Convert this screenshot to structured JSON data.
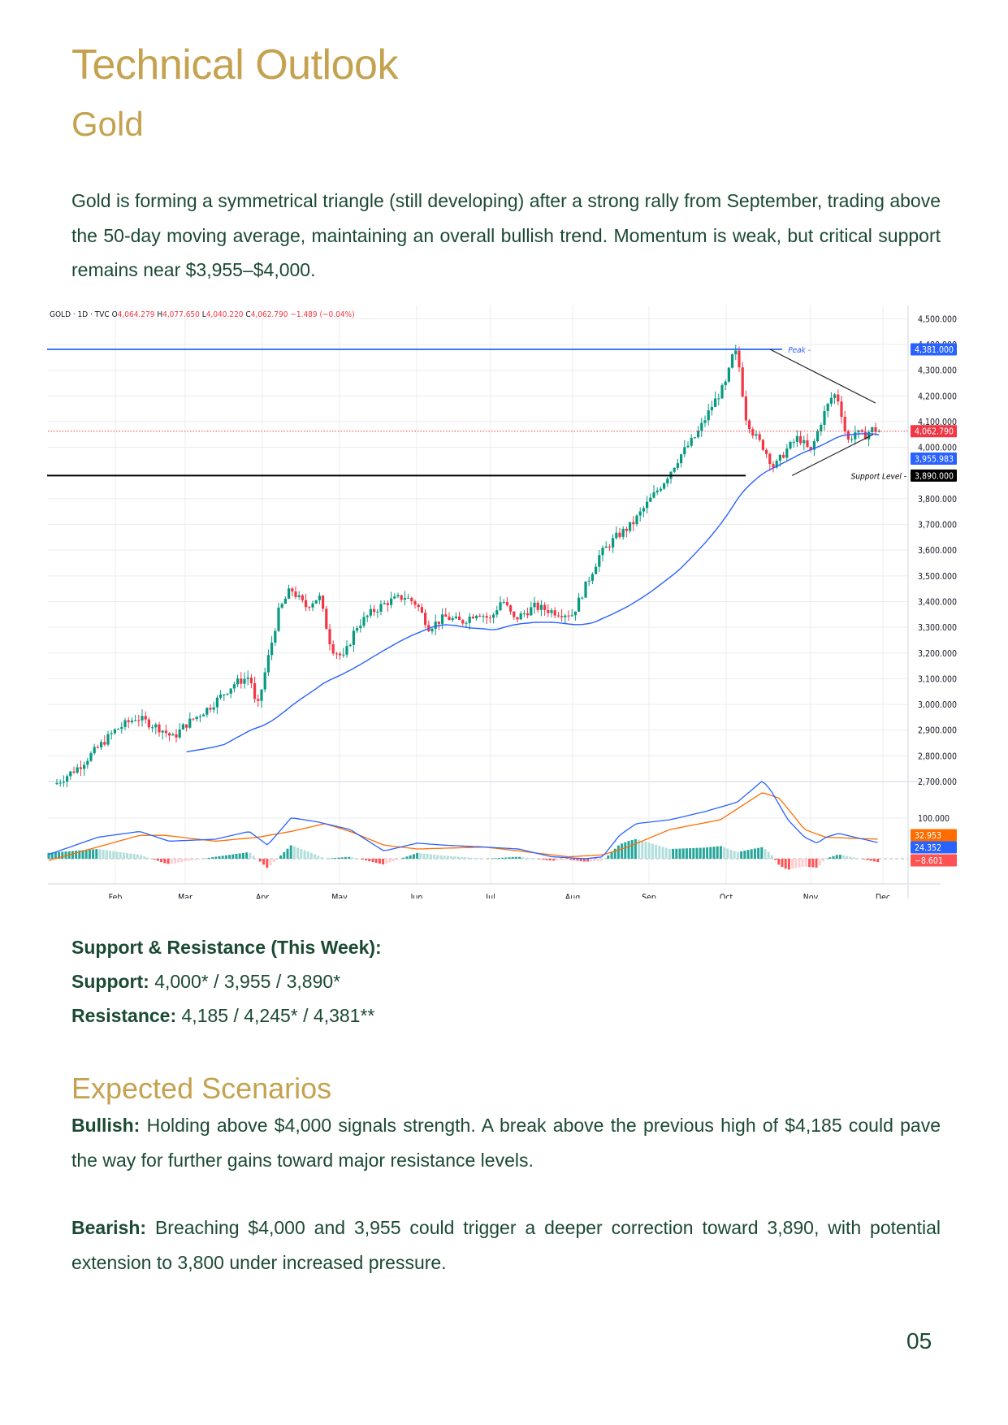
{
  "page": {
    "title": "Technical Outlook",
    "subtitle": "Gold",
    "intro": "Gold is forming a symmetrical triangle (still developing) after a strong rally from September, trading above the 50-day moving average, maintaining an overall bullish trend. Momentum is weak, but critical support remains near $3,955–$4,000.",
    "page_number": "05",
    "colors": {
      "heading_gold": "#c4a24f",
      "body_green": "#1b4a33"
    }
  },
  "support_resistance": {
    "heading": "Support & Resistance (This Week):",
    "support_label": "Support:",
    "support_values": "4,000* / 3,955 / 3,890*",
    "resistance_label": "Resistance:",
    "resistance_values": "4,185 / 4,245* / 4,381**"
  },
  "scenarios": {
    "heading": "Expected Scenarios",
    "bullish_label": "Bullish:",
    "bullish_text": "Holding above $4,000 signals strength. A break above the previous high of $4,185 could pave the way for further gains toward major resistance levels.",
    "bearish_label": "Bearish:",
    "bearish_text": "Breaching $4,000 and 3,955 could trigger a deeper correction toward 3,890, with potential extension to 3,800 under increased pressure."
  },
  "chart_header": {
    "symbol": "GOLD · 1D · TVC",
    "o_label": "O",
    "o_value": "4,064.279",
    "h_label": "H",
    "h_value": "4,077.650",
    "l_label": "L",
    "l_value": "4,040.220",
    "c_label": "C",
    "c_value": "4,062.790",
    "change": "−1.489 (−0.04%)"
  },
  "chart_data": {
    "type": "candlestick",
    "title": "GOLD · 1D · TVC",
    "x_ticks": [
      "Feb",
      "Mar",
      "Apr",
      "May",
      "Jun",
      "Jul",
      "Aug",
      "Sep",
      "Oct",
      "Nov",
      "Dec"
    ],
    "y_ticks": [
      4500,
      4400,
      4300,
      4200,
      4100,
      4000,
      3800,
      3700,
      3600,
      3500,
      3400,
      3300,
      3200,
      3100,
      3000,
      2900,
      2800,
      2700
    ],
    "y_tick_labels": [
      "4,500.000",
      "4,400.000",
      "4,300.000",
      "4,200.000",
      "4,100.000",
      "4,000.000",
      "3,800.000",
      "3,700.000",
      "3,600.000",
      "3,500.000",
      "3,400.000",
      "3,300.000",
      "3,200.000",
      "3,100.000",
      "3,000.000",
      "2,900.000",
      "2,800.000",
      "2,700.000"
    ],
    "ylim": [
      2680,
      4530
    ],
    "grid": true,
    "price_path_monthly_close": {
      "Jan": 2760,
      "Feb": 2940,
      "Mar": 3000,
      "Apr": 3300,
      "May": 3380,
      "Jun": 3320,
      "Jul": 3350,
      "Aug": 3340,
      "Sep": 3820,
      "Oct": 4000,
      "Nov": 4062.79
    },
    "key_points": [
      {
        "label": "Jan start",
        "value": 2700
      },
      {
        "label": "Late Feb high",
        "value": 2950
      },
      {
        "label": "Apr low",
        "value": 2960
      },
      {
        "label": "Apr high",
        "value": 3500
      },
      {
        "label": "Mid-Jun high",
        "value": 3450
      },
      {
        "label": "Late Aug",
        "value": 3410
      },
      {
        "label": "Oct peak",
        "value": 4381
      },
      {
        "label": "Late Oct low",
        "value": 3890
      },
      {
        "label": "Mid-Nov high",
        "value": 4245
      },
      {
        "label": "Current close",
        "value": 4062.79
      }
    ],
    "series": [
      {
        "name": "50-day MA",
        "color": "#2962ff",
        "last_value": 3955.983
      },
      {
        "name": "Price (close)",
        "last_value": 4062.79
      }
    ],
    "annotations": [
      {
        "type": "hline",
        "label": "Peak",
        "value": 4381.0,
        "value_label": "4,381.000",
        "color": "#2962ff"
      },
      {
        "type": "hline",
        "label": "Support Level",
        "value": 3890.0,
        "value_label": "3,890.000",
        "color": "#000000"
      },
      {
        "type": "price_tag",
        "value_label": "4,062.790",
        "color": "#f23645"
      },
      {
        "type": "price_tag",
        "value_label": "3,955.983",
        "color": "#2962ff"
      },
      {
        "type": "trendline",
        "label": "triangle upper",
        "from": 4381,
        "to": 4170
      },
      {
        "type": "trendline",
        "label": "triangle lower",
        "from": 3890,
        "to": 4050
      }
    ],
    "macd": {
      "tick": "100.000",
      "signal_value": "32.953",
      "signal_color": "#ff6d00",
      "macd_value": "24.352",
      "macd_color": "#2962ff",
      "histogram_value": "−8.601",
      "histogram_color": "#ff5252"
    },
    "labels": {
      "peak": "Peak",
      "support": "Support Level"
    },
    "colors": {
      "up": "#089981",
      "down": "#f23645",
      "ma": "#2962ff",
      "grid": "#ececec"
    }
  }
}
